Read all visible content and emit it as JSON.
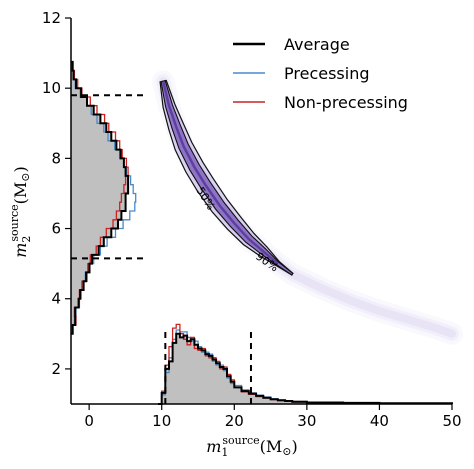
{
  "chart_data": {
    "type": "scatter",
    "title": "",
    "xlabel": {
      "base": "m",
      "sub": "1",
      "sup": "source",
      "unit": "(M",
      "sun": "⊙",
      "close": ")"
    },
    "ylabel": {
      "base": "m",
      "sub": "2",
      "sup": "source",
      "unit": "(M",
      "sun": "⊙",
      "close": ")"
    },
    "xlim": [
      -2.5,
      50
    ],
    "ylim": [
      1,
      12
    ],
    "xticks": [
      0,
      10,
      20,
      30,
      40,
      50
    ],
    "yticks": [
      2,
      4,
      6,
      8,
      10,
      12
    ],
    "colors": {
      "average": "#000000",
      "precessing": "#4a8ac9",
      "nonprecessing": "#cc2222",
      "fill": "#c0c0c0",
      "contour": "#5a3fa0",
      "density": "#9a8ad8"
    },
    "legend": {
      "position": "top-right",
      "items": [
        {
          "label": "Average",
          "key": "average"
        },
        {
          "label": "Precessing",
          "key": "precessing"
        },
        {
          "label": "Non-precessing",
          "key": "nonprecessing"
        }
      ]
    },
    "contour_labels": [
      "50%",
      "90%"
    ],
    "posterior_curve": {
      "m1": [
        10.2,
        11.0,
        12.0,
        13.0,
        14.5,
        16.0,
        18.0,
        20.0,
        22.0,
        24.0,
        26.0,
        28.0
      ],
      "m2": [
        10.2,
        9.5,
        8.9,
        8.35,
        7.75,
        7.25,
        6.65,
        6.15,
        5.7,
        5.35,
        5.0,
        4.7
      ],
      "tail_m1": [
        28,
        32,
        36,
        40,
        44,
        48,
        50
      ],
      "tail_m2": [
        4.7,
        4.3,
        3.95,
        3.65,
        3.4,
        3.15,
        3.0
      ]
    },
    "m1_marginal": {
      "bin_edges": [
        9.5,
        10,
        10.5,
        11,
        11.5,
        12,
        12.5,
        13,
        13.5,
        14,
        14.5,
        15,
        15.5,
        16,
        16.5,
        17,
        17.5,
        18,
        18.5,
        19,
        19.5,
        20,
        21,
        22,
        23,
        24,
        25,
        26,
        27,
        28,
        30,
        35,
        40,
        45,
        50
      ],
      "average": [
        0.0,
        0.3,
        0.95,
        1.15,
        1.65,
        1.9,
        1.8,
        1.85,
        1.7,
        1.75,
        1.6,
        1.5,
        1.45,
        1.35,
        1.3,
        1.2,
        1.1,
        1.0,
        0.95,
        0.75,
        0.6,
        0.45,
        0.35,
        0.28,
        0.22,
        0.17,
        0.13,
        0.1,
        0.08,
        0.06,
        0.04,
        0.03,
        0.02,
        0.02
      ],
      "precessing": [
        0.0,
        0.25,
        0.85,
        1.25,
        1.75,
        2.0,
        1.95,
        1.95,
        1.8,
        1.7,
        1.7,
        1.55,
        1.4,
        1.4,
        1.35,
        1.15,
        1.05,
        1.05,
        0.9,
        0.7,
        0.55,
        0.5,
        0.38,
        0.3,
        0.24,
        0.19,
        0.14,
        0.11,
        0.09,
        0.07,
        0.05,
        0.03,
        0.02,
        0.02
      ],
      "nonprecessing": [
        0.0,
        0.35,
        1.05,
        1.55,
        2.05,
        2.15,
        1.9,
        1.75,
        1.6,
        1.8,
        1.5,
        1.45,
        1.5,
        1.3,
        1.25,
        1.25,
        1.15,
        0.95,
        1.0,
        0.8,
        0.65,
        0.45,
        0.33,
        0.26,
        0.2,
        0.16,
        0.12,
        0.09,
        0.07,
        0.05,
        0.04,
        0.03,
        0.02,
        0.02
      ],
      "credible_interval": [
        10.5,
        22.3
      ]
    },
    "m2_marginal": {
      "bin_edges": [
        3.0,
        3.25,
        3.5,
        3.75,
        4.0,
        4.25,
        4.5,
        4.75,
        5.0,
        5.25,
        5.5,
        5.75,
        6.0,
        6.25,
        6.5,
        6.75,
        7.0,
        7.25,
        7.5,
        7.75,
        8.0,
        8.25,
        8.5,
        8.75,
        9.0,
        9.25,
        9.5,
        9.75,
        10.0,
        10.25,
        10.5,
        10.75
      ],
      "average": [
        0.2,
        0.5,
        0.5,
        0.9,
        1.1,
        1.5,
        1.8,
        2.2,
        2.5,
        3.3,
        3.9,
        4.8,
        5.6,
        6.0,
        6.5,
        6.5,
        6.8,
        6.8,
        6.5,
        6.3,
        5.9,
        5.4,
        4.8,
        4.2,
        3.5,
        2.7,
        1.9,
        1.2,
        0.6,
        0.3,
        0.2
      ],
      "precessing": [
        0.2,
        0.4,
        0.6,
        0.9,
        1.2,
        1.5,
        1.7,
        2.1,
        2.7,
        3.5,
        4.3,
        5.3,
        6.2,
        7.0,
        7.6,
        7.7,
        7.4,
        7.1,
        6.6,
        6.3,
        5.8,
        5.2,
        4.4,
        3.9,
        3.1,
        2.4,
        1.9,
        1.1,
        0.5,
        0.3,
        0.1
      ],
      "nonprecessing": [
        0.2,
        0.6,
        0.4,
        1.0,
        1.0,
        1.3,
        1.9,
        2.0,
        2.3,
        3.0,
        3.5,
        4.2,
        5.0,
        5.4,
        5.8,
        6.0,
        6.3,
        6.5,
        6.8,
        6.6,
        6.1,
        5.8,
        5.3,
        4.5,
        4.0,
        3.1,
        2.3,
        1.3,
        0.8,
        0.4,
        0.2
      ],
      "credible_interval": [
        5.15,
        9.8
      ]
    }
  }
}
